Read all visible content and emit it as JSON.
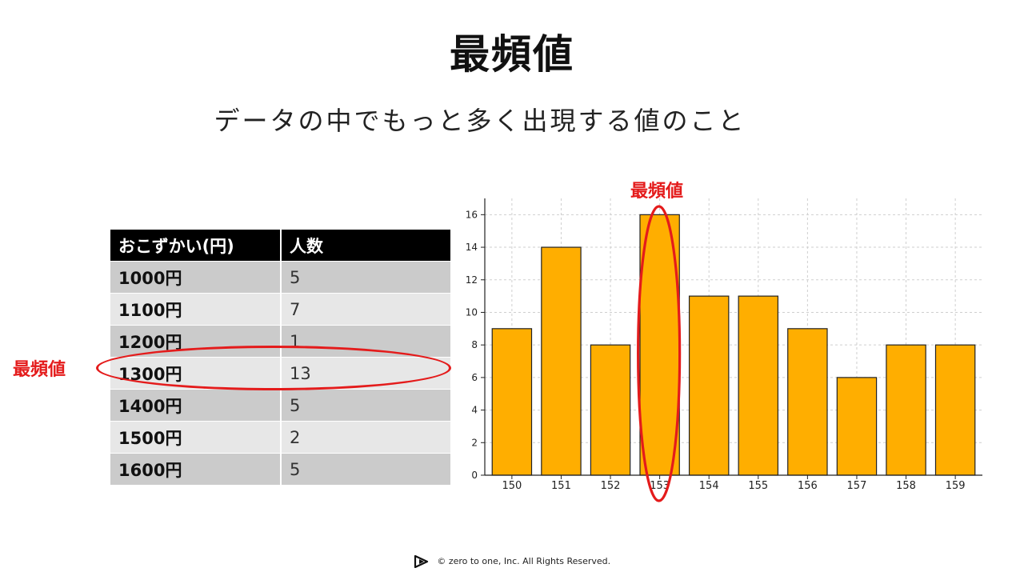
{
  "header": {
    "title": "最頻値",
    "subtitle": "データの中でもっと多く出現する値のこと"
  },
  "table": {
    "headers": [
      "おこずかい(円)",
      "人数"
    ],
    "rows": [
      [
        "1000円",
        "5"
      ],
      [
        "1100円",
        "7"
      ],
      [
        "1200円",
        "1"
      ],
      [
        "1300円",
        "13"
      ],
      [
        "1400円",
        "5"
      ],
      [
        "1500円",
        "2"
      ],
      [
        "1600円",
        "5"
      ]
    ],
    "highlight_label": "最頻値",
    "highlight_row": 3
  },
  "chart_label": "最頻値",
  "chart_data": {
    "type": "bar",
    "categories": [
      "150",
      "151",
      "152",
      "153",
      "154",
      "155",
      "156",
      "157",
      "158",
      "159"
    ],
    "values": [
      9,
      14,
      8,
      16,
      11,
      11,
      9,
      6,
      8,
      8
    ],
    "ylim": [
      0,
      17
    ],
    "yticks": [
      0,
      2,
      4,
      6,
      8,
      10,
      12,
      14,
      16
    ],
    "grid": true,
    "highlight_category": "153",
    "colors": {
      "bar": "#ffae00",
      "edge": "#222222",
      "highlight": "#e41b1b"
    }
  },
  "footer": {
    "text": "©  zero to one, Inc. All Rights Reserved."
  }
}
